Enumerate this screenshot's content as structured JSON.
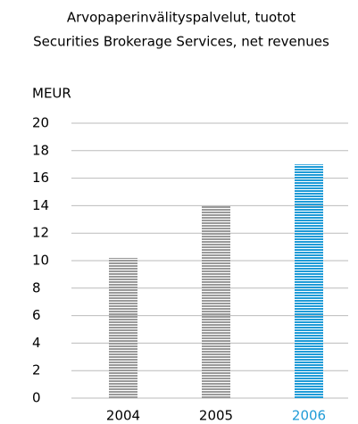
{
  "chart_data": {
    "type": "bar",
    "title": "Arvopaperinvälityspalvelut, tuotot",
    "subtitle": "Securities Brokerage Services, net revenues",
    "y_label": "MEUR",
    "categories": [
      "2004",
      "2005",
      "2006"
    ],
    "values": [
      10.2,
      14,
      17
    ],
    "colors": [
      "#9a9a9a",
      "#9a9a9a",
      "#1f9bd7"
    ],
    "label_colors": [
      "#000000",
      "#000000",
      "#1f9bd7"
    ],
    "ylim": [
      0,
      20
    ],
    "yticks": [
      0,
      2,
      4,
      6,
      8,
      10,
      12,
      14,
      16,
      18,
      20
    ],
    "grid": true
  }
}
